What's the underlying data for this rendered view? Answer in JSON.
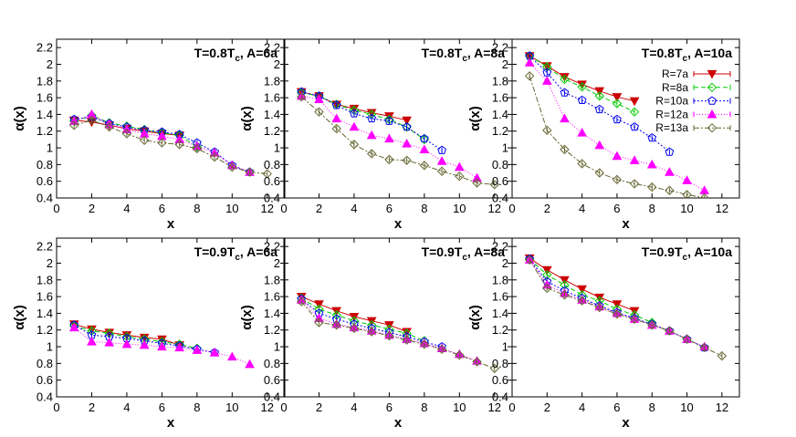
{
  "chart_data": [
    {
      "type": "line",
      "title_main": "T=0.8T",
      "title_sub": "c",
      "title_rest": ", A=6a",
      "xlabel": "x",
      "ylabel": "α(x)",
      "xlim": [
        0,
        13
      ],
      "ylim": [
        0.4,
        2.3
      ],
      "xticks": [
        "0",
        "2",
        "4",
        "6",
        "8",
        "10",
        "12"
      ],
      "yticks": [
        "0.4",
        "0.6",
        "0.8",
        "1",
        "1.2",
        "1.4",
        "1.6",
        "1.8",
        "2",
        "2.2"
      ],
      "series": [
        {
          "name": "R=7a",
          "x": [
            1,
            2,
            3,
            4,
            5,
            6,
            7
          ],
          "y": [
            1.33,
            1.31,
            1.27,
            1.23,
            1.2,
            1.17,
            1.15
          ]
        },
        {
          "name": "R=8a",
          "x": [
            1,
            2,
            3,
            4,
            5,
            6,
            7,
            8
          ],
          "y": [
            1.32,
            1.39,
            1.3,
            1.26,
            1.22,
            1.18,
            1.15,
            1.01
          ]
        },
        {
          "name": "R=10a",
          "x": [
            1,
            2,
            3,
            4,
            5,
            6,
            7,
            8,
            9,
            10,
            11
          ],
          "y": [
            1.34,
            1.37,
            1.29,
            1.25,
            1.21,
            1.19,
            1.16,
            1.06,
            0.95,
            0.79,
            0.71
          ]
        },
        {
          "name": "R=12a",
          "x": [
            1,
            2,
            3,
            4,
            5,
            6,
            7,
            8,
            9,
            10,
            11
          ],
          "y": [
            1.32,
            1.4,
            1.28,
            1.22,
            1.17,
            1.14,
            1.1,
            1.02,
            0.94,
            0.79,
            0.71
          ]
        },
        {
          "name": "R=13a",
          "x": [
            1,
            2,
            3,
            4,
            5,
            6,
            7,
            8,
            9,
            10,
            11,
            12
          ],
          "y": [
            1.27,
            1.33,
            1.25,
            1.17,
            1.09,
            1.06,
            1.04,
            0.99,
            0.89,
            0.77,
            0.71,
            0.69
          ]
        }
      ]
    },
    {
      "type": "line",
      "title_main": "T=0.8T",
      "title_sub": "c",
      "title_rest": ", A=8a",
      "xlabel": "x",
      "ylabel": "α(x)",
      "xlim": [
        0,
        13
      ],
      "ylim": [
        0.4,
        2.3
      ],
      "xticks": [
        "0",
        "2",
        "4",
        "6",
        "8",
        "10",
        "12"
      ],
      "yticks": [
        "0.4",
        "0.6",
        "0.8",
        "1",
        "1.2",
        "1.4",
        "1.6",
        "1.8",
        "2",
        "2.2"
      ],
      "series": [
        {
          "name": "R=7a",
          "x": [
            1,
            2,
            3,
            4,
            5,
            6,
            7
          ],
          "y": [
            1.67,
            1.62,
            1.52,
            1.47,
            1.42,
            1.38,
            1.33
          ]
        },
        {
          "name": "R=8a",
          "x": [
            1,
            2,
            3,
            4,
            5,
            6,
            7,
            8
          ],
          "y": [
            1.66,
            1.62,
            1.52,
            1.45,
            1.4,
            1.34,
            1.25,
            1.1
          ]
        },
        {
          "name": "R=10a",
          "x": [
            1,
            2,
            3,
            4,
            5,
            6,
            7,
            8,
            9
          ],
          "y": [
            1.67,
            1.62,
            1.51,
            1.41,
            1.35,
            1.32,
            1.25,
            1.11,
            0.97
          ]
        },
        {
          "name": "R=12a",
          "x": [
            1,
            2,
            3,
            4,
            5,
            6,
            7,
            8,
            9,
            10,
            11
          ],
          "y": [
            1.62,
            1.58,
            1.35,
            1.25,
            1.15,
            1.11,
            1.05,
            0.98,
            0.84,
            0.77,
            0.64
          ]
        },
        {
          "name": "R=13a",
          "x": [
            1,
            2,
            3,
            4,
            5,
            6,
            7,
            8,
            9,
            10,
            11,
            12
          ],
          "y": [
            1.61,
            1.43,
            1.23,
            1.04,
            0.93,
            0.86,
            0.85,
            0.79,
            0.72,
            0.66,
            0.58,
            0.56
          ]
        }
      ]
    },
    {
      "type": "line",
      "title_main": "T=0.8T",
      "title_sub": "c",
      "title_rest": ", A=10a",
      "xlabel": "x",
      "ylabel": "α(x)",
      "xlim": [
        0,
        13
      ],
      "ylim": [
        0.4,
        2.3
      ],
      "xticks": [
        "0",
        "2",
        "4",
        "6",
        "8",
        "10",
        "12"
      ],
      "yticks": [
        "0.4",
        "0.6",
        "0.8",
        "1",
        "1.2",
        "1.4",
        "1.6",
        "1.8",
        "2",
        "2.2"
      ],
      "legend": [
        "R=7a",
        "R=8a",
        "R=10a",
        "R=12a",
        "R=13a"
      ],
      "series": [
        {
          "name": "R=7a",
          "x": [
            1,
            2,
            3,
            4,
            5,
            6,
            7
          ],
          "y": [
            2.1,
            1.98,
            1.85,
            1.76,
            1.68,
            1.61,
            1.56
          ]
        },
        {
          "name": "R=8a",
          "x": [
            1,
            2,
            3,
            4,
            5,
            6,
            7
          ],
          "y": [
            2.1,
            1.97,
            1.82,
            1.73,
            1.62,
            1.53,
            1.43
          ]
        },
        {
          "name": "R=10a",
          "x": [
            1,
            2,
            3,
            4,
            5,
            6,
            7,
            8,
            9
          ],
          "y": [
            2.1,
            1.9,
            1.66,
            1.57,
            1.46,
            1.34,
            1.25,
            1.12,
            0.95
          ]
        },
        {
          "name": "R=12a",
          "x": [
            1,
            2,
            3,
            4,
            5,
            6,
            7,
            8,
            9,
            10,
            11
          ],
          "y": [
            2.02,
            1.8,
            1.35,
            1.18,
            1.03,
            0.9,
            0.85,
            0.8,
            0.71,
            0.61,
            0.49
          ]
        },
        {
          "name": "R=13a",
          "x": [
            1,
            2,
            3,
            4,
            5,
            6,
            7,
            8,
            9,
            10,
            11
          ],
          "y": [
            1.86,
            1.21,
            0.98,
            0.81,
            0.7,
            0.62,
            0.57,
            0.53,
            0.49,
            0.44,
            0.4
          ]
        }
      ]
    },
    {
      "type": "line",
      "title_main": "T=0.9T",
      "title_sub": "c",
      "title_rest": ", A=6a",
      "xlabel": "x",
      "ylabel": "α(x)",
      "xlim": [
        0,
        13
      ],
      "ylim": [
        0.4,
        2.3
      ],
      "xticks": [
        "0",
        "2",
        "4",
        "6",
        "8",
        "10",
        "12"
      ],
      "yticks": [
        "0.4",
        "0.6",
        "0.8",
        "1",
        "1.2",
        "1.4",
        "1.6",
        "1.8",
        "2",
        "2.2"
      ],
      "series": [
        {
          "name": "R=7a",
          "x": [
            1,
            2,
            3,
            4,
            5,
            6,
            7
          ],
          "y": [
            1.27,
            1.21,
            1.17,
            1.14,
            1.11,
            1.09,
            1.02
          ]
        },
        {
          "name": "R=8a",
          "x": [
            1,
            2,
            3,
            4,
            5,
            6,
            7,
            8
          ],
          "y": [
            1.25,
            1.19,
            1.16,
            1.12,
            1.09,
            1.06,
            1.03,
            0.98
          ]
        },
        {
          "name": "R=10a",
          "x": [
            1,
            2,
            3,
            4,
            5,
            6,
            7,
            8,
            9
          ],
          "y": [
            1.26,
            1.14,
            1.12,
            1.1,
            1.07,
            1.04,
            1.01,
            0.97,
            0.93
          ]
        },
        {
          "name": "R=12a",
          "x": [
            1,
            2,
            3,
            4,
            5,
            6,
            7,
            8,
            9,
            10,
            11
          ],
          "y": [
            1.23,
            1.06,
            1.05,
            1.03,
            1.02,
            1.0,
            0.99,
            0.96,
            0.93,
            0.88,
            0.79
          ]
        }
      ]
    },
    {
      "type": "line",
      "title_main": "T=0.9T",
      "title_sub": "c",
      "title_rest": ", A=8a",
      "xlabel": "x",
      "ylabel": "α(x)",
      "xlim": [
        0,
        13
      ],
      "ylim": [
        0.4,
        2.3
      ],
      "xticks": [
        "0",
        "2",
        "4",
        "6",
        "8",
        "10",
        "12"
      ],
      "yticks": [
        "0.4",
        "0.6",
        "0.8",
        "1",
        "1.2",
        "1.4",
        "1.6",
        "1.8",
        "2",
        "2.2"
      ],
      "series": [
        {
          "name": "R=7a",
          "x": [
            1,
            2,
            3,
            4,
            5,
            6,
            7
          ],
          "y": [
            1.6,
            1.51,
            1.43,
            1.36,
            1.31,
            1.26,
            1.18
          ]
        },
        {
          "name": "R=8a",
          "x": [
            1,
            2,
            3,
            4,
            5,
            6,
            7,
            8
          ],
          "y": [
            1.58,
            1.45,
            1.38,
            1.31,
            1.26,
            1.21,
            1.16,
            1.07
          ]
        },
        {
          "name": "R=10a",
          "x": [
            1,
            2,
            3,
            4,
            5,
            6,
            7,
            8,
            9
          ],
          "y": [
            1.57,
            1.4,
            1.33,
            1.27,
            1.22,
            1.17,
            1.12,
            1.06,
            1.0
          ]
        },
        {
          "name": "R=12a",
          "x": [
            1,
            2,
            3,
            4,
            5,
            6,
            7,
            8,
            9,
            10,
            11
          ],
          "y": [
            1.56,
            1.34,
            1.27,
            1.23,
            1.19,
            1.14,
            1.09,
            1.04,
            0.98,
            0.91,
            0.83
          ]
        },
        {
          "name": "R=13a",
          "x": [
            1,
            2,
            3,
            4,
            5,
            6,
            7,
            8,
            9,
            10,
            11,
            12
          ],
          "y": [
            1.54,
            1.29,
            1.26,
            1.22,
            1.18,
            1.13,
            1.08,
            1.03,
            0.97,
            0.9,
            0.82,
            0.74
          ]
        }
      ]
    },
    {
      "type": "line",
      "title_main": "T=0.9T",
      "title_sub": "c",
      "title_rest": ", A=10a",
      "xlabel": "x",
      "ylabel": "α(x)",
      "xlim": [
        0,
        13
      ],
      "ylim": [
        0.4,
        2.3
      ],
      "xticks": [
        "0",
        "2",
        "4",
        "6",
        "8",
        "10",
        "12"
      ],
      "yticks": [
        "0.4",
        "0.6",
        "0.8",
        "1",
        "1.2",
        "1.4",
        "1.6",
        "1.8",
        "2",
        "2.2"
      ],
      "series": [
        {
          "name": "R=7a",
          "x": [
            1,
            2,
            3,
            4,
            5,
            6,
            7
          ],
          "y": [
            2.06,
            1.92,
            1.8,
            1.69,
            1.59,
            1.51,
            1.43
          ]
        },
        {
          "name": "R=8a",
          "x": [
            1,
            2,
            3,
            4,
            5,
            6,
            7,
            8
          ],
          "y": [
            2.05,
            1.86,
            1.74,
            1.62,
            1.55,
            1.45,
            1.38,
            1.29
          ]
        },
        {
          "name": "R=10a",
          "x": [
            1,
            2,
            3,
            4,
            5,
            6,
            7,
            8,
            9,
            10,
            11
          ],
          "y": [
            2.05,
            1.78,
            1.67,
            1.58,
            1.49,
            1.41,
            1.34,
            1.27,
            1.19,
            1.09,
            0.99
          ]
        },
        {
          "name": "R=12a",
          "x": [
            1,
            2,
            3,
            4,
            5,
            6,
            7,
            8,
            9,
            10,
            11
          ],
          "y": [
            2.04,
            1.74,
            1.64,
            1.56,
            1.48,
            1.4,
            1.33,
            1.26,
            1.19,
            1.09,
            1.0
          ]
        },
        {
          "name": "R=13a",
          "x": [
            1,
            2,
            3,
            4,
            5,
            6,
            7,
            8,
            9,
            10,
            11,
            12
          ],
          "y": [
            2.04,
            1.7,
            1.62,
            1.55,
            1.47,
            1.39,
            1.33,
            1.26,
            1.19,
            1.09,
            0.99,
            0.89
          ]
        }
      ]
    }
  ],
  "styles": {
    "R=7a": {
      "color": "#cc0000",
      "marker": "tri-down",
      "dash": ""
    },
    "R=8a": {
      "color": "#00cc00",
      "marker": "diamond-open",
      "dash": "5,3"
    },
    "R=10a": {
      "color": "#0000ee",
      "marker": "pentagon-open",
      "dash": "2,2"
    },
    "R=12a": {
      "color": "#ff00ff",
      "marker": "tri-up",
      "dash": "1,2"
    },
    "R=13a": {
      "color": "#666633",
      "marker": "diamond-open",
      "dash": "6,2,2,2"
    }
  }
}
